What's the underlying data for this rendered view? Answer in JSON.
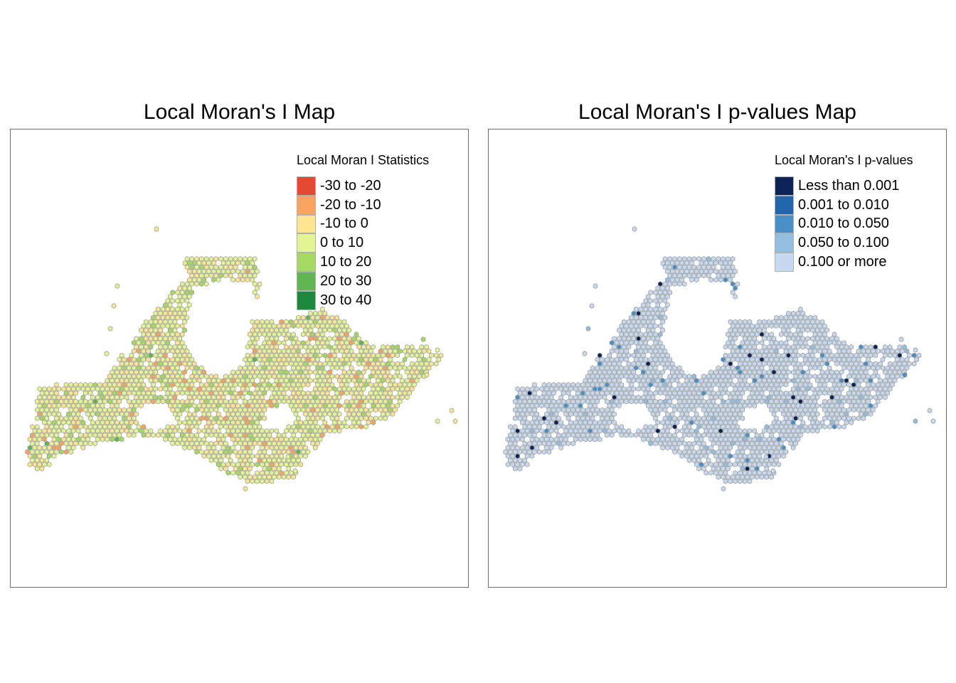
{
  "maps": [
    {
      "title": "Local Moran's I Map",
      "legend_title": "Local Moran I Statistics",
      "legend": [
        {
          "label": "-30 to -20",
          "color": "#e34a33"
        },
        {
          "label": "-20 to -10",
          "color": "#fca45e"
        },
        {
          "label": "-10 to 0",
          "color": "#fee591"
        },
        {
          "label": "0 to 10",
          "color": "#e3f592"
        },
        {
          "label": "10 to 20",
          "color": "#a5d960"
        },
        {
          "label": "20 to 30",
          "color": "#5fb54f"
        },
        {
          "label": "30 to 40",
          "color": "#1a8a3c"
        }
      ],
      "base_color": "#e3f592",
      "accent_colors": {
        "negative": "#fee591",
        "strong_negative": "#e34a33",
        "positive": "#a5d960",
        "strong_positive": "#1a8a3c"
      },
      "hex_border": "#8a8a8a"
    },
    {
      "title": "Local Moran's I p-values Map",
      "legend_title": "Local Moran's I p-values",
      "legend": [
        {
          "label": "Less than 0.001",
          "color": "#0c2357"
        },
        {
          "label": "0.001 to 0.010",
          "color": "#2166ac"
        },
        {
          "label": "0.010 to 0.050",
          "color": "#4a90c8"
        },
        {
          "label": "0.050 to 0.100",
          "color": "#93bedf"
        },
        {
          "label": "0.100 or more",
          "color": "#c6d9ee"
        }
      ],
      "base_color": "#c6d9ee",
      "hex_border": "#8a8a8a"
    }
  ]
}
